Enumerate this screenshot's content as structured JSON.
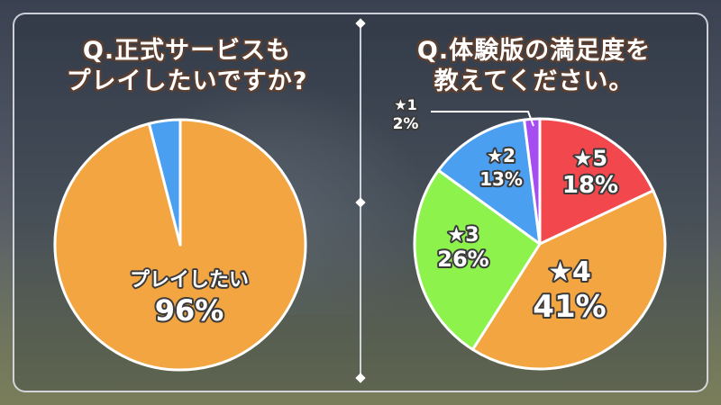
{
  "left_title_line1": "Q.正式サービスも",
  "left_title_line2": "プレイしたいですか?",
  "right_title_line1": "Q.体験版の満足度を",
  "right_title_line2": "教えてください。",
  "chart_data": [
    {
      "type": "pie",
      "title": "Q.正式サービスもプレイしたいですか?",
      "slices": [
        {
          "label": "プレイしたい",
          "value": 96,
          "display": "96%",
          "color": "#f2a541"
        },
        {
          "label": "",
          "value": 4,
          "display": "",
          "color": "#4a9ff0"
        }
      ]
    },
    {
      "type": "pie",
      "title": "Q.体験版の満足度を教えてください。",
      "slices": [
        {
          "label": "★5",
          "value": 18,
          "display": "18%",
          "color": "#f2474d"
        },
        {
          "label": "★4",
          "value": 41,
          "display": "41%",
          "color": "#f2a541"
        },
        {
          "label": "★3",
          "value": 26,
          "display": "26%",
          "color": "#8ef24d"
        },
        {
          "label": "★2",
          "value": 13,
          "display": "13%",
          "color": "#4a9ff0"
        },
        {
          "label": "★1",
          "value": 2,
          "display": "2%",
          "color": "#a64df2"
        }
      ]
    }
  ]
}
